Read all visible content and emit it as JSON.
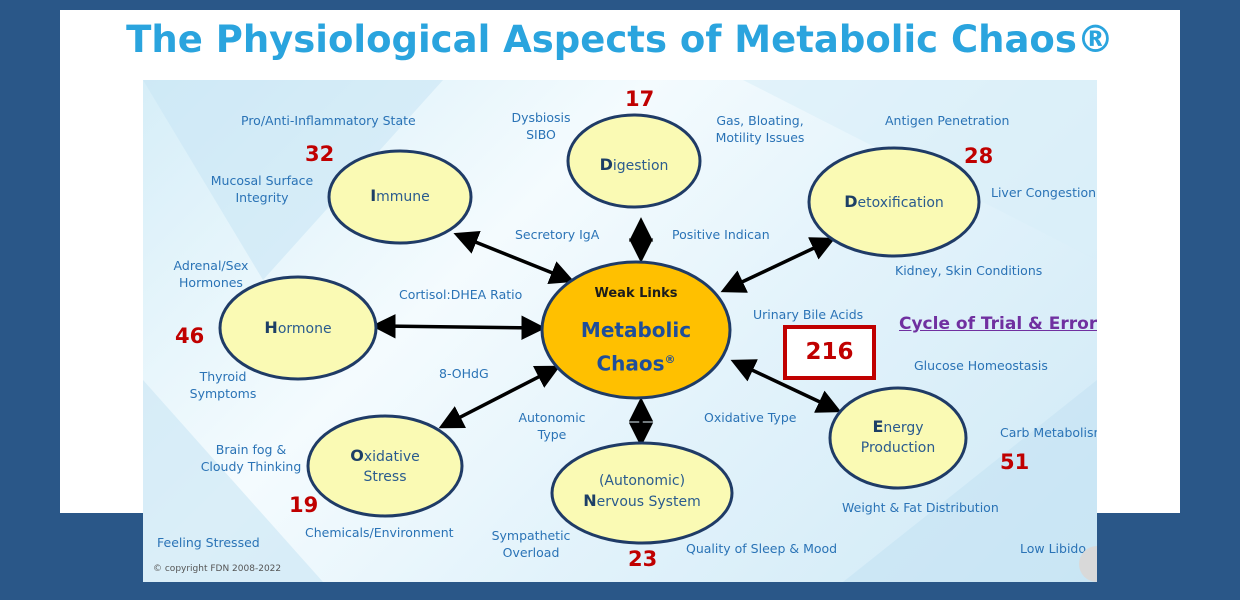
{
  "title": "The Physiological Aspects of Metabolic Chaos®",
  "center": {
    "weak_links": "Weak Links",
    "line1": "Metabolic",
    "line2": "Chaos",
    "mark": "®"
  },
  "nodes": {
    "digestion": {
      "first": "D",
      "rest": "igestion",
      "score": "17"
    },
    "immune": {
      "first": "I",
      "rest": "mmune",
      "score": "32"
    },
    "detox": {
      "first": "D",
      "rest": "etoxification",
      "score": "28"
    },
    "hormone": {
      "first": "H",
      "rest": "ormone",
      "score": "46"
    },
    "energy": {
      "first": "E",
      "rest": "nergy",
      "line2": "Production",
      "score": "51"
    },
    "oxidative": {
      "first": "O",
      "rest": "xidative",
      "line2": "Stress",
      "score": "19"
    },
    "nervous": {
      "line1": "(Autonomic)",
      "first": "N",
      "rest": "ervous System",
      "score": "23"
    }
  },
  "labels": {
    "pro_anti": "Pro/Anti-Inflammatory State",
    "dysbiosis": "Dysbiosis",
    "sibo": "SIBO",
    "gas": "Gas, Bloating,",
    "motility": "Motility Issues",
    "antigen": "Antigen Penetration",
    "mucosal": "Mucosal Surface",
    "integrity": "Integrity",
    "liver": "Liver Congestion",
    "secretory": "Secretory IgA",
    "indican": "Positive Indican",
    "adrenal": "Adrenal/Sex",
    "hormones": "Hormones",
    "kidney": "Kidney, Skin Conditions",
    "cortisol": "Cortisol:DHEA Ratio",
    "bile": "Urinary Bile Acids",
    "thyroid": "Thyroid",
    "symptoms": "Symptoms",
    "ohdg": "8-OHdG",
    "glucose": "Glucose Homeostasis",
    "autonomic": "Autonomic",
    "type": "Type",
    "oxtype": "Oxidative Type",
    "brain": "Brain fog &",
    "cloudy": "Cloudy Thinking",
    "carb": "Carb Metabolism",
    "chemicals": "Chemicals/Environment",
    "weight": "Weight & Fat Distribution",
    "feeling": "Feeling Stressed",
    "sympathetic": "Sympathetic",
    "overload": "Overload",
    "sleep": "Quality of Sleep & Mood",
    "libido": "Low Libido"
  },
  "cycle": "Cycle of Trial & Error",
  "total": "216",
  "copyright": "© copyright FDN 2008-2022",
  "colors": {
    "accent_title": "#2aa4de",
    "node_fill": "#fafab4",
    "center_fill": "#ffc000",
    "score_red": "#c00000",
    "cycle_purple": "#7030a0",
    "background": "#2a5788"
  }
}
